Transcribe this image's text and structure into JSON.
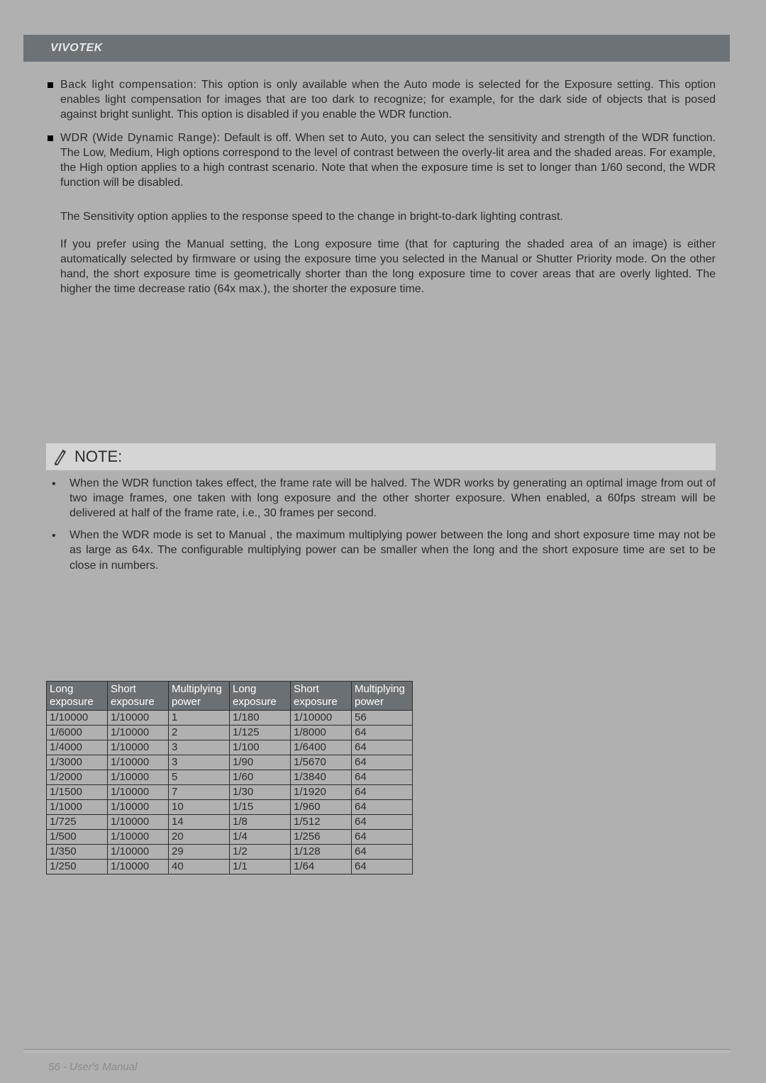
{
  "header": {
    "brand": "VIVOTEK"
  },
  "body": {
    "bullets": [
      {
        "lead": "Back light compensation:",
        "text": "This option is only available when the Auto mode is selected for the Exposure setting. This option enables light compensation for images that are too dark to recognize; for example, for the dark side of objects that is posed against bright sunlight. This option is disabled if you enable the WDR function."
      },
      {
        "lead": "WDR (Wide Dynamic Range):",
        "text": "Default is off. When set to Auto, you can select the sensitivity and strength of the WDR function. The Low, Medium, High options correspond to the level of contrast between the overly-lit area and the shaded areas. For example, the High option applies to a high contrast scenario. Note that when the exposure time is set to longer than 1/60 second, the WDR function will be disabled."
      }
    ],
    "paras": [
      "The Sensitivity option applies to the response speed to the change in bright-to-dark lighting contrast.",
      "If you prefer using the Manual setting, the Long exposure time (that for capturing the shaded area of an image) is either automatically selected by firmware or using the exposure time you selected in the Manual or Shutter Priority mode. On the other hand, the short exposure time is geometrically shorter than the long exposure time to cover areas that are overly lighted. The higher the time decrease ratio (64x max.), the shorter the exposure time."
    ]
  },
  "note": {
    "title": "NOTE:",
    "items": [
      "When the WDR function takes effect, the frame rate will be halved. The WDR works by generating an optimal image from out of two image frames, one taken with long exposure and the other shorter exposure. When enabled, a 60fps stream will be delivered at half of the frame rate, i.e., 30 frames per second.",
      "When the WDR mode is set to Manual , the maximum multiplying power between the long and short exposure time may not be as large as 64x. The configurable multiplying power can be smaller when the long and the short exposure time are set to be close in numbers."
    ]
  },
  "table": {
    "type": "table",
    "header_bg": "#6b7075",
    "header_color": "#ffffff",
    "border_color": "#2b2b2b",
    "columns": [
      "Long exposure",
      "Short exposure",
      "Multiplying power",
      "Long exposure",
      "Short exposure",
      "Multiplying power"
    ],
    "rows": [
      [
        "1/10000",
        "1/10000",
        "1",
        "1/180",
        "1/10000",
        "56"
      ],
      [
        "1/6000",
        "1/10000",
        "2",
        "1/125",
        "1/8000",
        "64"
      ],
      [
        "1/4000",
        "1/10000",
        "3",
        "1/100",
        "1/6400",
        "64"
      ],
      [
        "1/3000",
        "1/10000",
        "3",
        "1/90",
        "1/5670",
        "64"
      ],
      [
        "1/2000",
        "1/10000",
        "5",
        "1/60",
        "1/3840",
        "64"
      ],
      [
        "1/1500",
        "1/10000",
        "7",
        "1/30",
        "1/1920",
        "64"
      ],
      [
        "1/1000",
        "1/10000",
        "10",
        "1/15",
        "1/960",
        "64"
      ],
      [
        "1/725",
        "1/10000",
        "14",
        "1/8",
        "1/512",
        "64"
      ],
      [
        "1/500",
        "1/10000",
        "20",
        "1/4",
        "1/256",
        "64"
      ],
      [
        "1/350",
        "1/10000",
        "29",
        "1/2",
        "1/128",
        "64"
      ],
      [
        "1/250",
        "1/10000",
        "40",
        "1/1",
        "1/64",
        "64"
      ]
    ]
  },
  "footer": {
    "text": "56 - User's Manual"
  }
}
